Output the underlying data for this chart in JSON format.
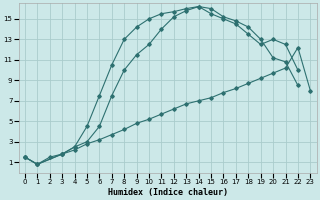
{
  "xlabel": "Humidex (Indice chaleur)",
  "bg_color": "#cce8e8",
  "grid_color": "#aacccc",
  "line_color": "#2d7070",
  "xlim": [
    -0.5,
    23.5
  ],
  "ylim": [
    0,
    16.5
  ],
  "xticks": [
    0,
    1,
    2,
    3,
    4,
    5,
    6,
    7,
    8,
    9,
    10,
    11,
    12,
    13,
    14,
    15,
    16,
    17,
    18,
    19,
    20,
    21,
    22,
    23
  ],
  "yticks": [
    1,
    3,
    5,
    7,
    9,
    11,
    13,
    15
  ],
  "line1_x": [
    0,
    1,
    2,
    3,
    4,
    5,
    6,
    7,
    8,
    9,
    10,
    11,
    12,
    13,
    14,
    15,
    16,
    17,
    18,
    19,
    20,
    21,
    22
  ],
  "line1_y": [
    1.5,
    0.8,
    1.5,
    1.8,
    2.5,
    4.5,
    7.5,
    10.5,
    13.0,
    14.2,
    15.0,
    15.5,
    15.7,
    16.0,
    16.2,
    16.0,
    15.2,
    14.8,
    14.2,
    13.0,
    11.2,
    10.8,
    8.5
  ],
  "line2_x": [
    0,
    1,
    3,
    4,
    5,
    6,
    7,
    8,
    9,
    10,
    11,
    12,
    13,
    14,
    15,
    16,
    17,
    18,
    19,
    20,
    21,
    22
  ],
  "line2_y": [
    1.5,
    0.8,
    1.8,
    2.5,
    3.0,
    4.5,
    7.5,
    10.0,
    11.5,
    12.5,
    14.0,
    15.2,
    15.8,
    16.2,
    15.5,
    15.0,
    14.5,
    13.5,
    12.5,
    13.0,
    12.5,
    10.0
  ],
  "line3_x": [
    0,
    1,
    3,
    4,
    5,
    6,
    7,
    8,
    9,
    10,
    11,
    12,
    13,
    14,
    15,
    16,
    17,
    18,
    19,
    20,
    21,
    22,
    23
  ],
  "line3_y": [
    1.5,
    0.8,
    1.8,
    2.2,
    2.8,
    3.2,
    3.7,
    4.2,
    4.8,
    5.2,
    5.7,
    6.2,
    6.7,
    7.0,
    7.3,
    7.8,
    8.2,
    8.7,
    9.2,
    9.7,
    10.2,
    12.2,
    8.0
  ]
}
